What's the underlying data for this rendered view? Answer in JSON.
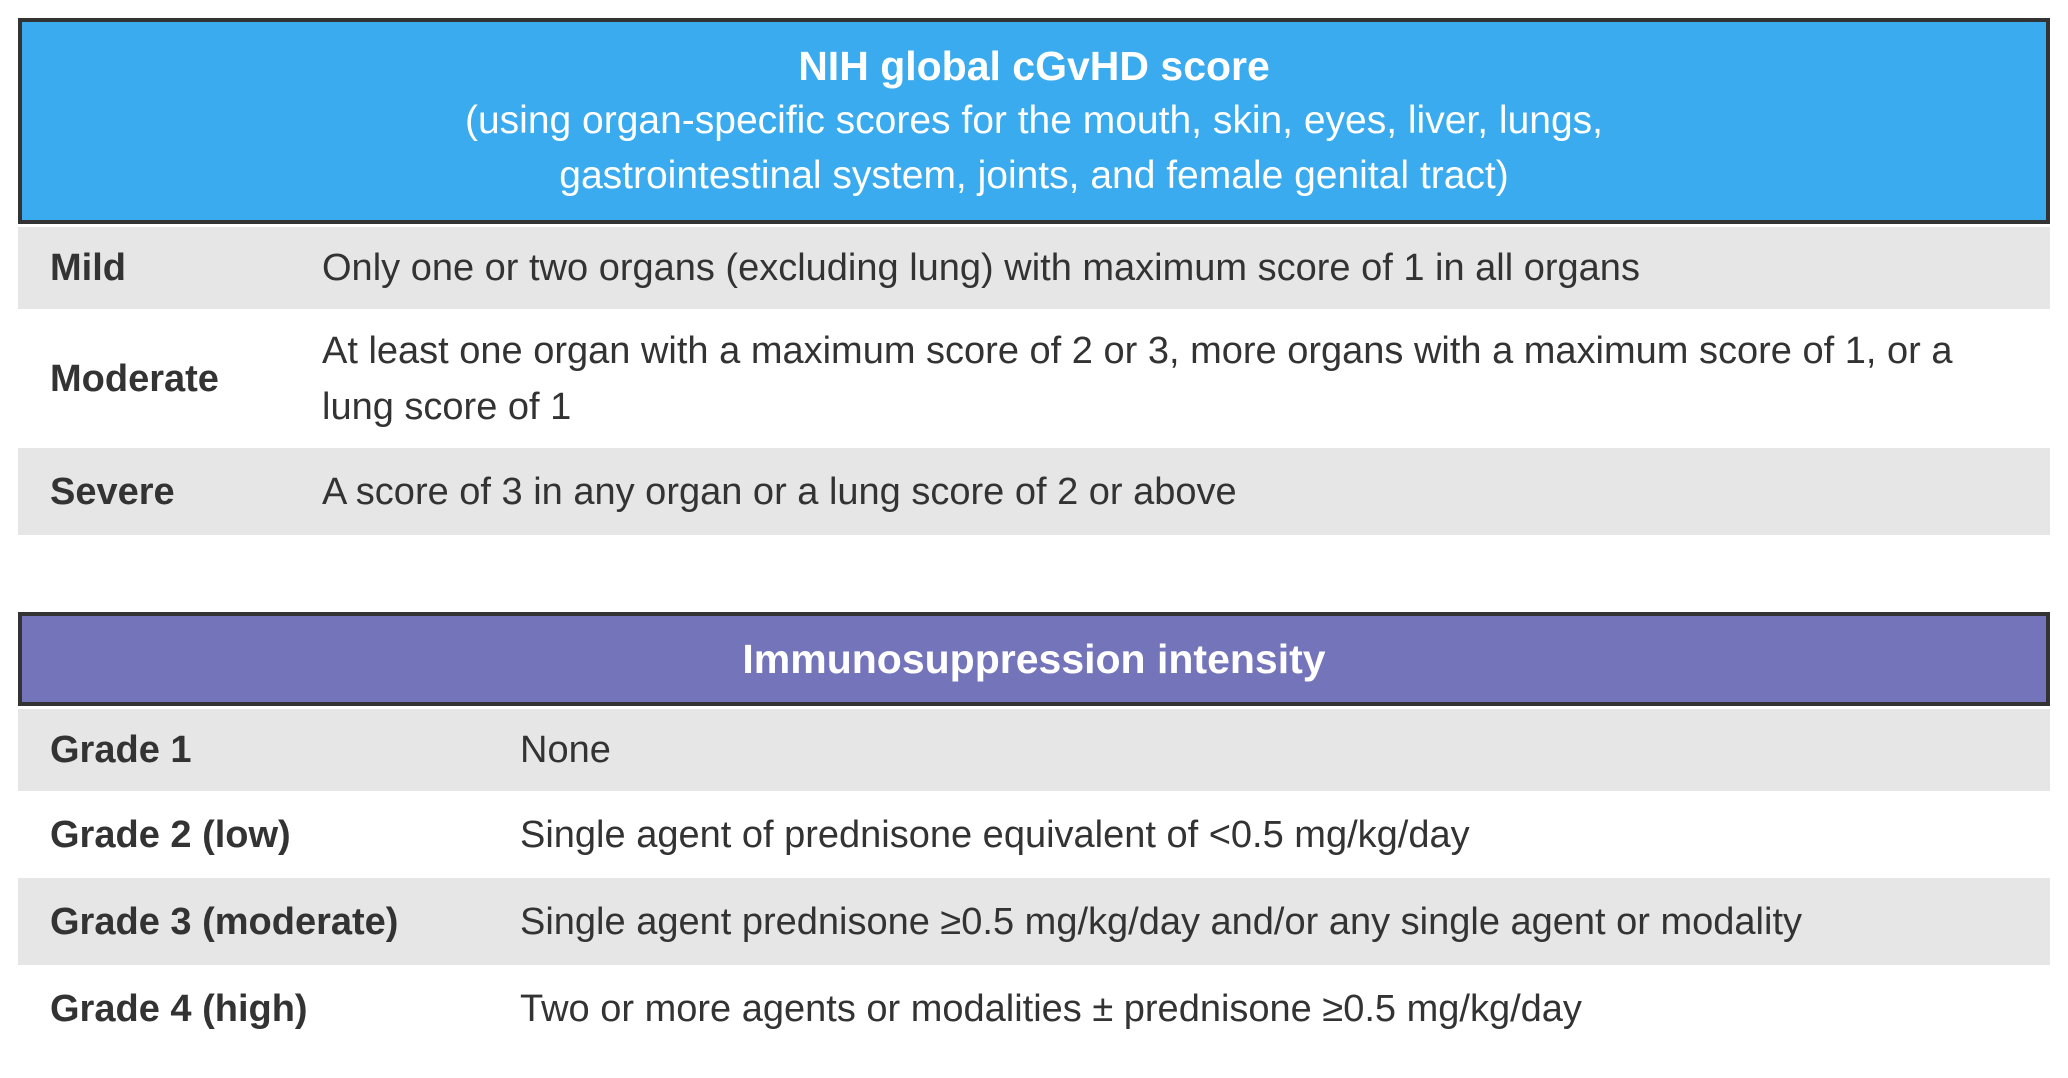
{
  "tables": [
    {
      "title": "NIH global cGvHD score",
      "subtitle_lines": [
        "(using organ-specific scores for the mouth, skin, eyes, liver, lungs,",
        "gastrointestinal system, joints, and female genital tract)"
      ],
      "rows": [
        {
          "label": "Mild",
          "text": "Only one or two organs (excluding lung) with maximum score of 1 in all organs"
        },
        {
          "label": "Moderate",
          "text": "At least one organ with a maximum score of 2 or 3, more organs with a maximum score of 1, or a lung score of 1"
        },
        {
          "label": "Severe",
          "text": "A score of 3 in any organ or a lung score of 2 or above"
        }
      ]
    },
    {
      "title": "Immunosuppression intensity",
      "rows": [
        {
          "label": "Grade 1",
          "text": "None"
        },
        {
          "label": "Grade 2 (low)",
          "text": "Single agent of prednisone equivalent of <0.5 mg/kg/day"
        },
        {
          "label": "Grade 3 (moderate)",
          "text": "Single agent prednisone ≥0.5 mg/kg/day and/or any single agent or modality"
        },
        {
          "label": "Grade 4 (high)",
          "text": "Two or more agents or modalities ± prednisone ≥0.5 mg/kg/day"
        }
      ]
    }
  ]
}
